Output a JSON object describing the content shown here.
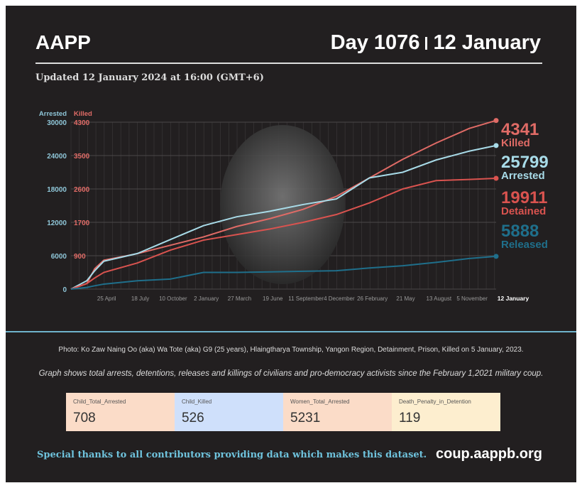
{
  "header": {
    "brand": "AAPP",
    "day": "Day 1076",
    "date": "12 January",
    "updated": "Updated 12 January 2024 at 16:00 (GMT+6)"
  },
  "colors": {
    "arrested": "#a8dbe8",
    "killed": "#e06b66",
    "detained": "#d9534f",
    "released": "#1f6f8b"
  },
  "chart_data": {
    "type": "line",
    "xlabel": "",
    "ylabel": "Arrested",
    "ylabel_right": "Killed",
    "x_ticks": [
      {
        "day": 83,
        "label": "25 April"
      },
      {
        "day": 168,
        "label": "18 July"
      },
      {
        "day": 251,
        "label": "10 October"
      },
      {
        "day": 335,
        "label": "2 January"
      },
      {
        "day": 419,
        "label": "27 March"
      },
      {
        "day": 503,
        "label": "19 June"
      },
      {
        "day": 587,
        "label": "11 September"
      },
      {
        "day": 671,
        "label": "4 December"
      },
      {
        "day": 755,
        "label": "26 February"
      },
      {
        "day": 839,
        "label": "21 May"
      },
      {
        "day": 923,
        "label": "13 August"
      },
      {
        "day": 1007,
        "label": "5 November"
      },
      {
        "day": 1075,
        "label": "12 January"
      }
    ],
    "xlim": [
      0,
      1075
    ],
    "y_ticks_arrested": [
      "0",
      "6000",
      "12000",
      "18000",
      "24000",
      "30000"
    ],
    "y_ticks_killed": [
      "",
      "900",
      "1700",
      "2600",
      "3500",
      "4300"
    ],
    "ylim": [
      0,
      30000
    ],
    "x_days": [
      0,
      40,
      60,
      83,
      168,
      251,
      335,
      419,
      503,
      587,
      671,
      755,
      839,
      923,
      1007,
      1075
    ],
    "series": [
      {
        "name": "Killed",
        "axis": "killed",
        "label": "Killed",
        "end_value": "4341",
        "values": [
          0,
          150,
          550,
          780,
          950,
          1150,
          1350,
          1600,
          1800,
          2050,
          2400,
          2900,
          3400,
          3800,
          4150,
          4341
        ]
      },
      {
        "name": "Arrested",
        "axis": "arrested",
        "label": "Arrested",
        "end_value": "25799",
        "values": [
          0,
          1500,
          3300,
          5000,
          6400,
          8900,
          11400,
          13000,
          14000,
          15200,
          16200,
          20000,
          21000,
          23200,
          24800,
          25799
        ]
      },
      {
        "name": "Detained",
        "axis": "arrested",
        "label": "Detained",
        "end_value": "19911",
        "values": [
          0,
          1000,
          2000,
          3000,
          4700,
          7000,
          8800,
          9800,
          10800,
          12000,
          13400,
          15500,
          18000,
          19500,
          19700,
          19911
        ]
      },
      {
        "name": "Released",
        "axis": "arrested",
        "label": "Released",
        "end_value": "5888",
        "values": [
          0,
          300,
          600,
          900,
          1500,
          1800,
          3000,
          3000,
          3100,
          3200,
          3300,
          3800,
          4200,
          4800,
          5500,
          5888
        ]
      }
    ]
  },
  "caption": "Photo: Ko Zaw Naing Oo (aka) Wa Tote (aka) G9 (25 years), Hlaingtharya Township, Yangon Region, Detainment, Prison, Killed on 5 January, 2023.",
  "description": "Graph shows total arrests, detentions, releases and killings of civilians and pro-democracy activists since the February 1,2021 military coup.",
  "cards": [
    {
      "label": "Child_Total_Arrested",
      "value": "708",
      "color": "#fbdcc8"
    },
    {
      "label": "Child_Killed",
      "value": "526",
      "color": "#cfe0fb"
    },
    {
      "label": "Women_Total_Arrested",
      "value": "5231",
      "color": "#fbdcc8"
    },
    {
      "label": "Death_Penalty_in_Detention",
      "value": "119",
      "color": "#fdeecf"
    }
  ],
  "footer": {
    "thanks": "Special thanks to all contributors providing data which makes this dataset.",
    "site": "coup.aappb.org"
  }
}
